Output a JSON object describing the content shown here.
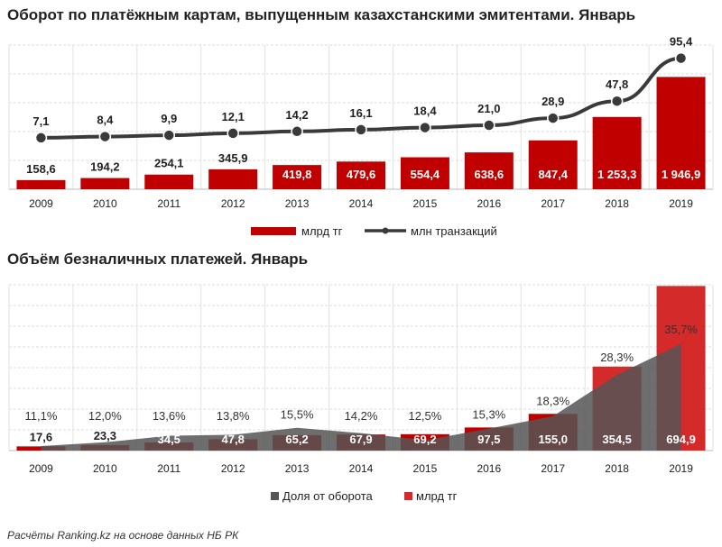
{
  "footer": {
    "source": "Расчёты Ranking.kz на основе данных НБ РК"
  },
  "colors": {
    "bar": "#c00000",
    "bar2": "#d42a2a",
    "line": "#3a3a3a",
    "area": "#555555"
  },
  "chart_data": [
    {
      "type": "bar+line",
      "title": "Оборот по платёжным  картам, выпущенным казахстанскими эмитентами. Январь",
      "categories": [
        "2009",
        "2010",
        "2011",
        "2012",
        "2013",
        "2014",
        "2015",
        "2016",
        "2017",
        "2018",
        "2019"
      ],
      "series": [
        {
          "name": "млрд тг",
          "type": "bar",
          "values": [
            158.6,
            194.2,
            254.1,
            345.9,
            419.8,
            479.6,
            554.4,
            638.6,
            847.4,
            1253.3,
            1946.9
          ],
          "labels": [
            "158,6",
            "194,2",
            "254,1",
            "345,9",
            "419,8",
            "479,6",
            "554,4",
            "638,6",
            "847,4",
            "1 253,3",
            "1 946,9"
          ]
        },
        {
          "name": "млн транзакций",
          "type": "line",
          "values": [
            7.1,
            8.4,
            9.9,
            12.1,
            14.2,
            16.1,
            18.4,
            21.0,
            28.9,
            47.8,
            95.4
          ],
          "labels": [
            "7,1",
            "8,4",
            "9,9",
            "12,1",
            "14,2",
            "16,1",
            "18,4",
            "21,0",
            "28,9",
            "47,8",
            "95,4"
          ]
        }
      ],
      "ylim": [
        0,
        2500
      ],
      "y2lim": [
        -50,
        110
      ],
      "grid": true,
      "legend": "bottom"
    },
    {
      "type": "bar+area",
      "title": "Объём безналичных платежей. Январь",
      "categories": [
        "2009",
        "2010",
        "2011",
        "2012",
        "2013",
        "2014",
        "2015",
        "2016",
        "2017",
        "2018",
        "2019"
      ],
      "series": [
        {
          "name": "Доля от оборота",
          "type": "area",
          "values": [
            11.1,
            12.0,
            13.6,
            13.8,
            15.5,
            14.2,
            12.5,
            15.3,
            18.3,
            28.3,
            35.7
          ],
          "labels": [
            "11,1%",
            "12,0%",
            "13,6%",
            "13,8%",
            "15,5%",
            "14,2%",
            "12,5%",
            "15,3%",
            "18,3%",
            "28,3%",
            "35,7%"
          ]
        },
        {
          "name": "млрд тг",
          "type": "bar",
          "values": [
            17.6,
            23.3,
            34.5,
            47.8,
            65.2,
            67.9,
            69.2,
            97.5,
            155.0,
            354.5,
            694.9
          ],
          "labels": [
            "17,6",
            "23,3",
            "34,5",
            "47,8",
            "65,2",
            "67,9",
            "69,2",
            "97,5",
            "155,0",
            "354,5",
            "694,9"
          ]
        }
      ],
      "ylim": [
        0,
        700
      ],
      "y2lim": [
        10,
        50
      ],
      "grid": true,
      "legend": "bottom"
    }
  ]
}
